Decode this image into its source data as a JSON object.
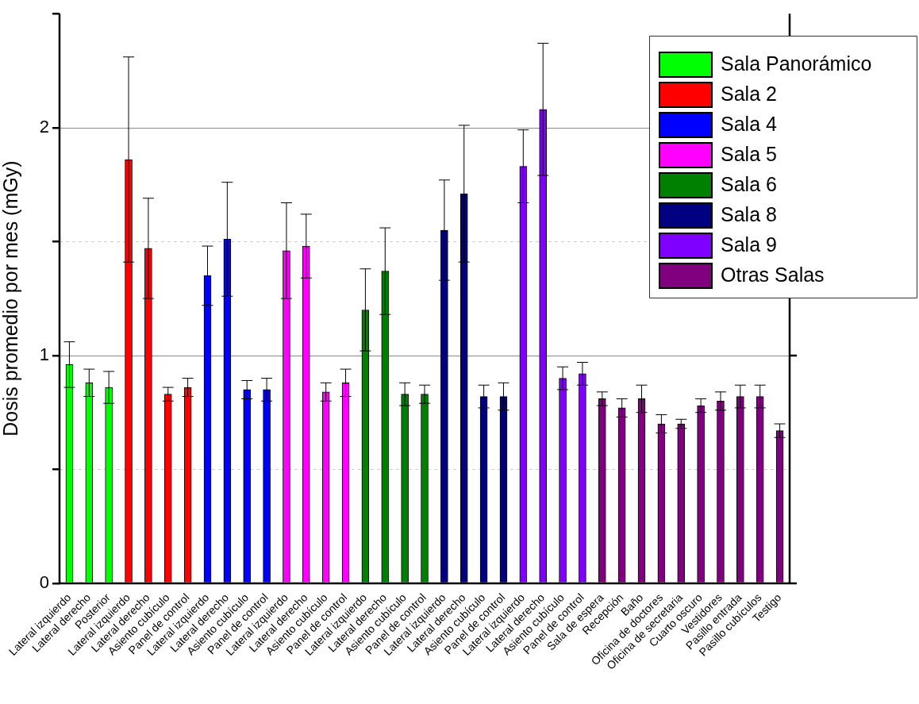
{
  "chart_data": {
    "type": "bar",
    "ylabel": "Dosis promedio por mes (mGy)",
    "categories": [
      "Lateral izquierdo",
      "Lateral derecho",
      "Posterior",
      "Lateral izquierdo",
      "Lateral derecho",
      "Asiento cubículo",
      "Panel de control",
      "Lateral izquierdo",
      "Lateral derecho",
      "Asiento cubículo",
      "Panel de control",
      "Lateral izquierdo",
      "Lateral derecho",
      "Asiento cubículo",
      "Panel de control",
      "Lateral izquierdo",
      "Lateral derecho",
      "Asiento cubículo",
      "Panel de control",
      "Lateral izquierdo",
      "Lateral derecho",
      "Asiento cubículo",
      "Panel de control",
      "Lateral izquierdo",
      "Lateral derecho",
      "Asiento cubículo",
      "Panel de control",
      "Sala de espera",
      "Recepción",
      "Baño",
      "Oficina de doctores",
      "Oficina de secretaria",
      "Cuarto oscuro",
      "Vestidores",
      "Pasillo entrada",
      "Pasillo cubículos",
      "Testigo"
    ],
    "series": [
      {
        "name": "Sala Panorámico",
        "color": "#00ff00",
        "values": [
          0.96,
          0.88,
          0.86,
          null,
          null,
          null,
          null,
          null,
          null,
          null,
          null,
          null,
          null,
          null,
          null,
          null,
          null,
          null,
          null,
          null,
          null,
          null,
          null,
          null,
          null,
          null,
          null,
          null,
          null,
          null,
          null,
          null,
          null,
          null,
          null,
          null,
          null
        ],
        "errors": [
          0.1,
          0.06,
          0.07,
          null,
          null,
          null,
          null,
          null,
          null,
          null,
          null,
          null,
          null,
          null,
          null,
          null,
          null,
          null,
          null,
          null,
          null,
          null,
          null,
          null,
          null,
          null,
          null,
          null,
          null,
          null,
          null,
          null,
          null,
          null,
          null,
          null,
          null
        ]
      },
      {
        "name": "Sala 2",
        "color": "#ff0000",
        "values": [
          null,
          null,
          null,
          1.86,
          1.47,
          0.83,
          0.86,
          null,
          null,
          null,
          null,
          null,
          null,
          null,
          null,
          null,
          null,
          null,
          null,
          null,
          null,
          null,
          null,
          null,
          null,
          null,
          null,
          null,
          null,
          null,
          null,
          null,
          null,
          null,
          null,
          null,
          null
        ],
        "errors": [
          null,
          null,
          null,
          0.45,
          0.22,
          0.03,
          0.04,
          null,
          null,
          null,
          null,
          null,
          null,
          null,
          null,
          null,
          null,
          null,
          null,
          null,
          null,
          null,
          null,
          null,
          null,
          null,
          null,
          null,
          null,
          null,
          null,
          null,
          null,
          null,
          null,
          null,
          null
        ]
      },
      {
        "name": "Sala 4",
        "color": "#0000ff",
        "values": [
          null,
          null,
          null,
          null,
          null,
          null,
          null,
          1.35,
          1.51,
          0.85,
          0.85,
          null,
          null,
          null,
          null,
          null,
          null,
          null,
          null,
          null,
          null,
          null,
          null,
          null,
          null,
          null,
          null,
          null,
          null,
          null,
          null,
          null,
          null,
          null,
          null,
          null,
          null
        ],
        "errors": [
          null,
          null,
          null,
          null,
          null,
          null,
          null,
          0.13,
          0.25,
          0.04,
          0.05,
          null,
          null,
          null,
          null,
          null,
          null,
          null,
          null,
          null,
          null,
          null,
          null,
          null,
          null,
          null,
          null,
          null,
          null,
          null,
          null,
          null,
          null,
          null,
          null,
          null,
          null
        ]
      },
      {
        "name": "Sala 5",
        "color": "#ff00ff",
        "values": [
          null,
          null,
          null,
          null,
          null,
          null,
          null,
          null,
          null,
          null,
          null,
          1.46,
          1.48,
          0.84,
          0.88,
          null,
          null,
          null,
          null,
          null,
          null,
          null,
          null,
          null,
          null,
          null,
          null,
          null,
          null,
          null,
          null,
          null,
          null,
          null,
          null,
          null,
          null
        ],
        "errors": [
          null,
          null,
          null,
          null,
          null,
          null,
          null,
          null,
          null,
          null,
          null,
          0.21,
          0.14,
          0.04,
          0.06,
          null,
          null,
          null,
          null,
          null,
          null,
          null,
          null,
          null,
          null,
          null,
          null,
          null,
          null,
          null,
          null,
          null,
          null,
          null,
          null,
          null,
          null
        ]
      },
      {
        "name": "Sala 6",
        "color": "#008000",
        "values": [
          null,
          null,
          null,
          null,
          null,
          null,
          null,
          null,
          null,
          null,
          null,
          null,
          null,
          null,
          null,
          1.2,
          1.37,
          0.83,
          0.83,
          null,
          null,
          null,
          null,
          null,
          null,
          null,
          null,
          null,
          null,
          null,
          null,
          null,
          null,
          null,
          null,
          null,
          null
        ],
        "errors": [
          null,
          null,
          null,
          null,
          null,
          null,
          null,
          null,
          null,
          null,
          null,
          null,
          null,
          null,
          null,
          0.18,
          0.19,
          0.05,
          0.04,
          null,
          null,
          null,
          null,
          null,
          null,
          null,
          null,
          null,
          null,
          null,
          null,
          null,
          null,
          null,
          null,
          null,
          null
        ]
      },
      {
        "name": "Sala 8",
        "color": "#000080",
        "values": [
          null,
          null,
          null,
          null,
          null,
          null,
          null,
          null,
          null,
          null,
          null,
          null,
          null,
          null,
          null,
          null,
          null,
          null,
          null,
          1.55,
          1.71,
          0.82,
          0.82,
          null,
          null,
          null,
          null,
          null,
          null,
          null,
          null,
          null,
          null,
          null,
          null,
          null,
          null
        ],
        "errors": [
          null,
          null,
          null,
          null,
          null,
          null,
          null,
          null,
          null,
          null,
          null,
          null,
          null,
          null,
          null,
          null,
          null,
          null,
          null,
          0.22,
          0.3,
          0.05,
          0.06,
          null,
          null,
          null,
          null,
          null,
          null,
          null,
          null,
          null,
          null,
          null,
          null,
          null,
          null
        ]
      },
      {
        "name": "Sala 9",
        "color": "#8000ff",
        "values": [
          null,
          null,
          null,
          null,
          null,
          null,
          null,
          null,
          null,
          null,
          null,
          null,
          null,
          null,
          null,
          null,
          null,
          null,
          null,
          null,
          null,
          null,
          null,
          1.83,
          2.08,
          0.9,
          0.92,
          null,
          null,
          null,
          null,
          null,
          null,
          null,
          null,
          null,
          null
        ],
        "errors": [
          null,
          null,
          null,
          null,
          null,
          null,
          null,
          null,
          null,
          null,
          null,
          null,
          null,
          null,
          null,
          null,
          null,
          null,
          null,
          null,
          null,
          null,
          null,
          0.16,
          0.29,
          0.05,
          0.05,
          null,
          null,
          null,
          null,
          null,
          null,
          null,
          null,
          null,
          null
        ]
      },
      {
        "name": "Otras Salas",
        "color": "#800080",
        "values": [
          null,
          null,
          null,
          null,
          null,
          null,
          null,
          null,
          null,
          null,
          null,
          null,
          null,
          null,
          null,
          null,
          null,
          null,
          null,
          null,
          null,
          null,
          null,
          null,
          null,
          null,
          null,
          0.81,
          0.77,
          0.81,
          0.7,
          0.7,
          0.78,
          0.8,
          0.82,
          0.82,
          0.67
        ],
        "errors": [
          null,
          null,
          null,
          null,
          null,
          null,
          null,
          null,
          null,
          null,
          null,
          null,
          null,
          null,
          null,
          null,
          null,
          null,
          null,
          null,
          null,
          null,
          null,
          null,
          null,
          null,
          null,
          0.03,
          0.04,
          0.06,
          0.04,
          0.02,
          0.03,
          0.04,
          0.05,
          0.05,
          0.03
        ]
      }
    ],
    "ylim": [
      0,
      2.5
    ],
    "yticks": [
      0,
      {
        "value": 0.5,
        "label": null
      },
      1,
      {
        "value": 1.5,
        "label": null
      },
      2,
      {
        "value": 2.5,
        "label": null
      }
    ],
    "grid": "y",
    "legend": "top right"
  }
}
